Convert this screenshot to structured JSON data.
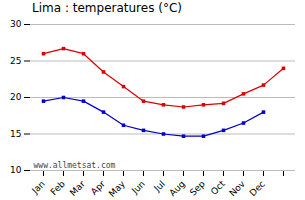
{
  "chart_data": {
    "type": "line",
    "title": "Lima : temperatures (°C)",
    "categories": [
      "Jan",
      "Feb",
      "Mar",
      "Apr",
      "May",
      "Jun",
      "Jul",
      "Aug",
      "Sep",
      "Oct",
      "Nov",
      "Dec",
      null
    ],
    "series": [
      {
        "color": "#dd0000",
        "values": [
          26.0,
          26.7,
          26.0,
          23.5,
          21.5,
          19.5,
          19.0,
          18.7,
          19.0,
          19.2,
          20.5,
          21.7,
          24.0
        ]
      },
      {
        "color": "#0000cc",
        "values": [
          19.5,
          20.0,
          19.5,
          18.0,
          16.2,
          15.5,
          15.0,
          14.7,
          14.7,
          15.5,
          16.5,
          18.0,
          null
        ]
      }
    ],
    "ylim": [
      10,
      30
    ],
    "yticks": [
      10,
      15,
      20,
      25,
      30
    ],
    "grid": true,
    "marker": "square",
    "annotations": [
      "www.allmetsat.com"
    ]
  }
}
